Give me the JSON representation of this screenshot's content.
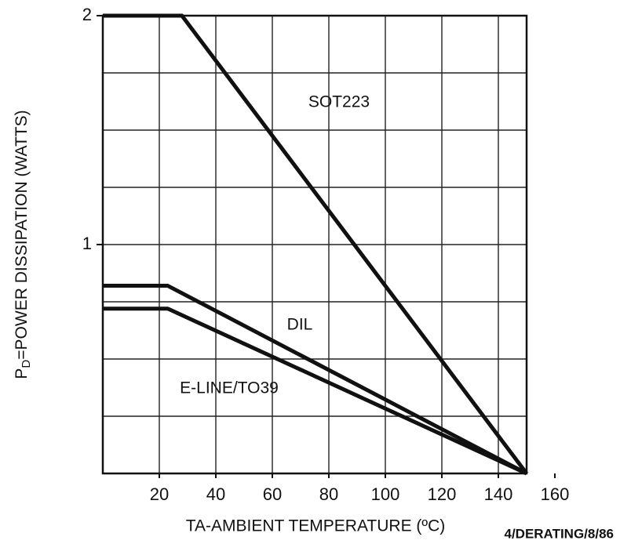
{
  "chart_data": {
    "type": "line",
    "ylabel": {
      "symbol": "P",
      "subscript": "D",
      "text": "=POWER DISSIPATION (WATTS)"
    },
    "xlabel": "TA-AMBIENT TEMPERATURE (ºC)",
    "footnote": "4/DERATING/8/86",
    "xlim": [
      0,
      150
    ],
    "ylim": [
      0,
      2
    ],
    "xticks": [
      20,
      40,
      60,
      80,
      100,
      120,
      140,
      160
    ],
    "yticks": [
      1,
      2
    ],
    "xgrid": [
      20,
      40,
      60,
      80,
      100,
      120,
      140
    ],
    "ygrid": [
      0.25,
      0.5,
      0.75,
      1,
      1.25,
      1.5,
      1.75
    ],
    "grid": true,
    "series": [
      {
        "name": "SOT223",
        "color": "#111111",
        "x": [
          0,
          28,
          150
        ],
        "values": [
          2,
          2,
          0
        ]
      },
      {
        "name": "DIL",
        "color": "#111111",
        "x": [
          0,
          23,
          150
        ],
        "values": [
          0.82,
          0.82,
          0
        ]
      },
      {
        "name": "E-LINE/TO39",
        "color": "#111111",
        "x": [
          0,
          23,
          150
        ],
        "values": [
          0.72,
          0.72,
          0
        ]
      }
    ]
  }
}
